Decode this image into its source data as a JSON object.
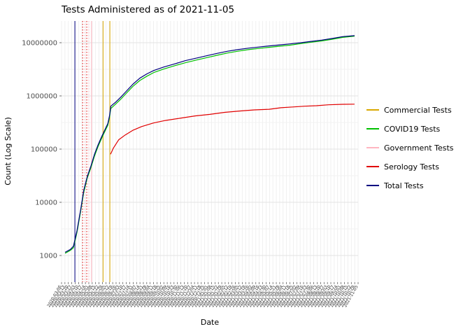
{
  "chart_data": {
    "type": "line",
    "title": "Tests Administered as of 2021-11-05",
    "xlabel": "Date",
    "ylabel": "Count (Log Scale)",
    "y_scale": "log10",
    "ylim": [
      320,
      26000000
    ],
    "y_ticks": [
      1000,
      10000,
      100000,
      1000000,
      10000000
    ],
    "y_minor": [
      3162,
      31623,
      316228,
      3162278
    ],
    "grid": true,
    "legend_position": "right",
    "x_tick_labels": [
      "2020-03-06",
      "2020-03-13",
      "2020-03-20",
      "2020-03-27",
      "2020-04-03",
      "2020-04-10",
      "2020-04-17",
      "2020-04-24",
      "2020-05-01",
      "2020-05-08",
      "2020-05-15",
      "2020-05-22",
      "2020-05-29",
      "2020-06-05",
      "2020-06-12",
      "2020-06-19",
      "2020-06-26",
      "2020-07-03",
      "2020-07-10",
      "2020-07-17",
      "2020-07-24",
      "2020-07-31",
      "2020-08-07",
      "2020-08-14",
      "2020-08-21",
      "2020-08-28",
      "2020-09-04",
      "2020-09-11",
      "2020-09-18",
      "2020-09-25",
      "2020-10-02",
      "2020-10-09",
      "2020-10-16",
      "2020-10-23",
      "2020-10-30",
      "2020-11-06",
      "2020-11-13",
      "2020-11-20",
      "2020-11-27",
      "2020-12-04",
      "2020-12-11",
      "2020-12-18",
      "2020-12-25",
      "2021-01-01",
      "2021-01-08",
      "2021-01-15",
      "2021-01-22",
      "2021-01-29",
      "2021-02-05",
      "2021-02-12",
      "2021-02-19",
      "2021-02-26",
      "2021-03-05",
      "2021-03-12",
      "2021-03-19",
      "2021-03-26",
      "2021-04-02",
      "2021-04-09",
      "2021-04-16",
      "2021-04-23",
      "2021-04-30",
      "2021-05-07",
      "2021-05-14",
      "2021-05-21",
      "2021-05-28",
      "2021-06-04",
      "2021-06-11",
      "2021-06-18",
      "2021-06-25",
      "2021-07-02",
      "2021-07-09",
      "2021-07-16",
      "2021-07-23",
      "2021-07-30",
      "2021-08-06",
      "2021-08-13",
      "2021-08-20",
      "2021-08-27",
      "2021-09-03",
      "2021-09-10",
      "2021-09-17",
      "2021-09-24",
      "2021-10-01",
      "2021-10-08",
      "2021-10-15",
      "2021-10-22",
      "2021-10-29",
      "2021-11-05"
    ],
    "series": [
      {
        "name": "Serology Tests",
        "color": "#e10000",
        "points": [
          [
            0.165,
            80000
          ],
          [
            0.175,
            105000
          ],
          [
            0.193,
            150000
          ],
          [
            0.215,
            185000
          ],
          [
            0.24,
            225000
          ],
          [
            0.27,
            265000
          ],
          [
            0.31,
            310000
          ],
          [
            0.35,
            345000
          ],
          [
            0.4,
            380000
          ],
          [
            0.45,
            420000
          ],
          [
            0.5,
            450000
          ],
          [
            0.55,
            490000
          ],
          [
            0.6,
            520000
          ],
          [
            0.65,
            545000
          ],
          [
            0.7,
            560000
          ],
          [
            0.74,
            600000
          ],
          [
            0.78,
            620000
          ],
          [
            0.82,
            640000
          ],
          [
            0.86,
            655000
          ],
          [
            0.9,
            680000
          ],
          [
            0.948,
            695000
          ],
          [
            0.988,
            700000
          ]
        ]
      },
      {
        "name": "COVID19 Tests",
        "color": "#00c000",
        "points": [
          [
            0.012,
            1100
          ],
          [
            0.03,
            1250
          ],
          [
            0.04,
            1400
          ],
          [
            0.052,
            2700
          ],
          [
            0.064,
            6500
          ],
          [
            0.075,
            15500
          ],
          [
            0.087,
            29000
          ],
          [
            0.099,
            45000
          ],
          [
            0.111,
            74000
          ],
          [
            0.123,
            112000
          ],
          [
            0.135,
            158000
          ],
          [
            0.146,
            215000
          ],
          [
            0.156,
            280000
          ],
          [
            0.162,
            400000
          ],
          [
            0.166,
            580000
          ],
          [
            0.182,
            700000
          ],
          [
            0.2,
            870000
          ],
          [
            0.217,
            1100000
          ],
          [
            0.24,
            1500000
          ],
          [
            0.264,
            1950000
          ],
          [
            0.288,
            2350000
          ],
          [
            0.311,
            2750000
          ],
          [
            0.345,
            3200000
          ],
          [
            0.382,
            3700000
          ],
          [
            0.418,
            4200000
          ],
          [
            0.453,
            4700000
          ],
          [
            0.49,
            5250000
          ],
          [
            0.524,
            5800000
          ],
          [
            0.56,
            6400000
          ],
          [
            0.594,
            6900000
          ],
          [
            0.63,
            7400000
          ],
          [
            0.665,
            7800000
          ],
          [
            0.7,
            8200000
          ],
          [
            0.736,
            8600000
          ],
          [
            0.771,
            9000000
          ],
          [
            0.807,
            9600000
          ],
          [
            0.842,
            10200000
          ],
          [
            0.877,
            10800000
          ],
          [
            0.912,
            11600000
          ],
          [
            0.948,
            12600000
          ],
          [
            0.988,
            13300000
          ]
        ]
      },
      {
        "name": "Total Tests",
        "color": "#000080",
        "points": [
          [
            0.012,
            1150
          ],
          [
            0.03,
            1300
          ],
          [
            0.04,
            1500
          ],
          [
            0.052,
            2900
          ],
          [
            0.064,
            7000
          ],
          [
            0.075,
            17000
          ],
          [
            0.087,
            31000
          ],
          [
            0.099,
            48000
          ],
          [
            0.111,
            80000
          ],
          [
            0.123,
            120000
          ],
          [
            0.135,
            170000
          ],
          [
            0.146,
            230000
          ],
          [
            0.156,
            300000
          ],
          [
            0.162,
            430000
          ],
          [
            0.166,
            640000
          ],
          [
            0.182,
            760000
          ],
          [
            0.2,
            950000
          ],
          [
            0.217,
            1200000
          ],
          [
            0.24,
            1650000
          ],
          [
            0.264,
            2150000
          ],
          [
            0.288,
            2600000
          ],
          [
            0.311,
            3000000
          ],
          [
            0.345,
            3500000
          ],
          [
            0.382,
            4000000
          ],
          [
            0.418,
            4600000
          ],
          [
            0.453,
            5100000
          ],
          [
            0.49,
            5700000
          ],
          [
            0.524,
            6300000
          ],
          [
            0.56,
            6900000
          ],
          [
            0.594,
            7400000
          ],
          [
            0.63,
            7900000
          ],
          [
            0.665,
            8300000
          ],
          [
            0.7,
            8700000
          ],
          [
            0.736,
            9100000
          ],
          [
            0.771,
            9500000
          ],
          [
            0.807,
            10000000
          ],
          [
            0.842,
            10600000
          ],
          [
            0.877,
            11200000
          ],
          [
            0.912,
            12000000
          ],
          [
            0.948,
            13000000
          ],
          [
            0.988,
            13600000
          ]
        ]
      }
    ],
    "vlines": [
      {
        "label": "Total Tests",
        "x": 0.045,
        "color": "#000080",
        "style": "solid"
      },
      {
        "label": "Serology Tests",
        "x": 0.071,
        "color": "#e10000",
        "style": "dotted"
      },
      {
        "label": "Government Tests",
        "x": 0.078,
        "color": "#ffb6c1",
        "style": "dotted"
      },
      {
        "label": "Serology Tests",
        "x": 0.085,
        "color": "#e10000",
        "style": "dotted"
      },
      {
        "label": "Government Tests",
        "x": 0.092,
        "color": "#ffb6c1",
        "style": "dotted"
      },
      {
        "label": "Government Tests",
        "x": 0.101,
        "color": "#ffb6c1",
        "style": "solid"
      },
      {
        "label": "Commercial Tests",
        "x": 0.14,
        "color": "#d9a800",
        "style": "solid"
      },
      {
        "label": "Commercial Tests",
        "x": 0.163,
        "color": "#d9a800",
        "style": "solid"
      }
    ],
    "legend_entries": [
      {
        "label": "Commercial Tests",
        "color": "#d9a800"
      },
      {
        "label": "COVID19 Tests",
        "color": "#00c000"
      },
      {
        "label": "Government Tests",
        "color": "#ffb6c1"
      },
      {
        "label": "Serology Tests",
        "color": "#e10000"
      },
      {
        "label": "Total Tests",
        "color": "#000080"
      }
    ]
  }
}
